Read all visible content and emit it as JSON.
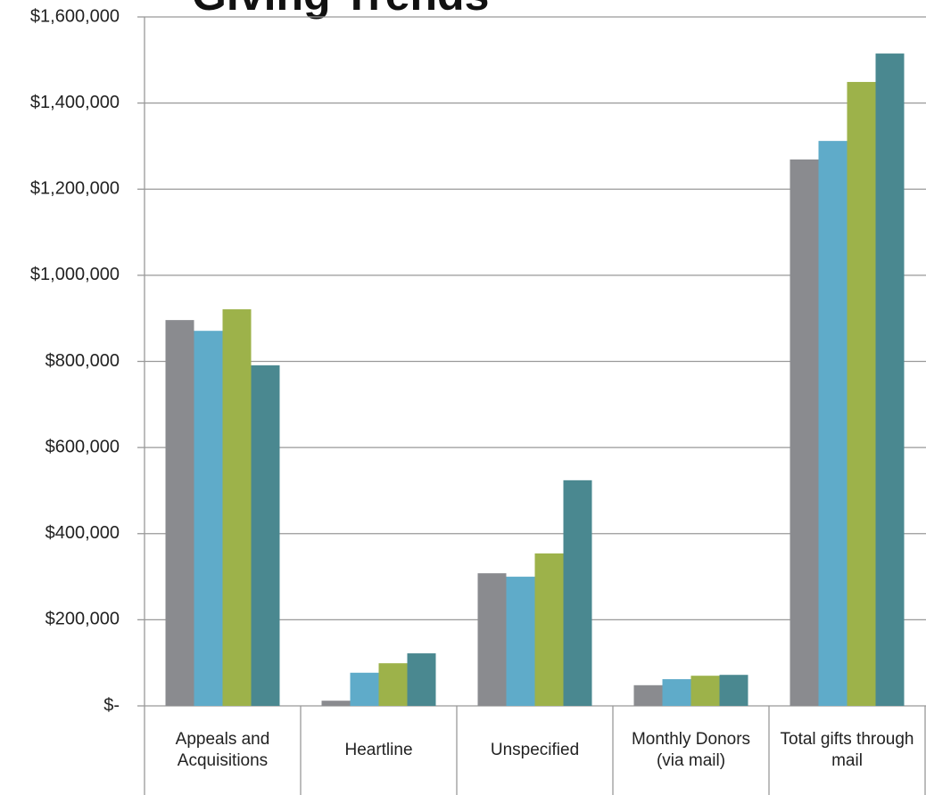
{
  "chart_data": {
    "type": "bar",
    "title": "Giving Trends",
    "categories": [
      "Appeals and Acquisitions",
      "Heartline",
      "Unspecified",
      "Monthly Donors (via mail)",
      "Total gifts through mail"
    ],
    "series": [
      {
        "color": "#8a8b8f",
        "values": [
          896000,
          12000,
          308000,
          48000,
          1269000
        ]
      },
      {
        "color": "#5fabc9",
        "values": [
          871000,
          77000,
          300000,
          62000,
          1312000
        ]
      },
      {
        "color": "#9db24a",
        "values": [
          921000,
          99000,
          354000,
          70000,
          1449000
        ]
      },
      {
        "color": "#4a8890",
        "values": [
          791000,
          122000,
          524000,
          72000,
          1515000
        ]
      }
    ],
    "ylim": [
      0,
      1600000
    ],
    "yticks": [
      {
        "value": 0,
        "label": "$-"
      },
      {
        "value": 200000,
        "label": "$200,000"
      },
      {
        "value": 400000,
        "label": "$400,000"
      },
      {
        "value": 600000,
        "label": "$600,000"
      },
      {
        "value": 800000,
        "label": "$800,000"
      },
      {
        "value": 1000000,
        "label": "$1,000,000"
      },
      {
        "value": 1200000,
        "label": "$1,200,000"
      },
      {
        "value": 1400000,
        "label": "$1,400,000"
      },
      {
        "value": 1600000,
        "label": "$1,600,000"
      }
    ],
    "grid": true
  }
}
